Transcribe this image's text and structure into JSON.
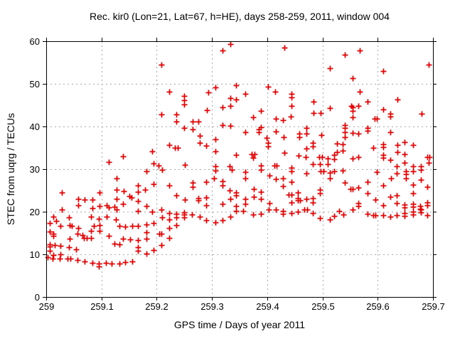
{
  "chart_data": {
    "type": "scatter",
    "title": "Rec. kir0 (Lon=21, Lat=67, h=HE), days 258-259, 2011, window 004",
    "xlabel": "GPS time / Days of year 2011",
    "ylabel": "STEC from uqrg / TECUs",
    "xlim": [
      259.0,
      259.7
    ],
    "ylim": [
      0,
      60
    ],
    "xticks": [
      259.0,
      259.1,
      259.2,
      259.3,
      259.4,
      259.5,
      259.6,
      259.7
    ],
    "xtick_labels": [
      "259",
      "259.1",
      "259.2",
      "259.3",
      "259.4",
      "259.5",
      "259.6",
      "259.7"
    ],
    "yticks": [
      0,
      10,
      20,
      30,
      40,
      50,
      60
    ],
    "ytick_labels": [
      "0",
      "10",
      "20",
      "30",
      "40",
      "50",
      "60"
    ],
    "grid": true,
    "legend": "none",
    "marker": "plus",
    "marker_color": "#e00000",
    "grid_color": "#a8a8a8",
    "border_color": "#000000",
    "points": [
      [
        259.113,
        31.7
      ],
      [
        259.139,
        33.0
      ],
      [
        259.127,
        27.8
      ],
      [
        259.028,
        24.5
      ],
      [
        259.127,
        25.2
      ],
      [
        259.14,
        24.8
      ],
      [
        259.166,
        26.2
      ],
      [
        259.058,
        23.0
      ],
      [
        259.07,
        22.8
      ],
      [
        259.083,
        22.8
      ],
      [
        259.097,
        24.5
      ],
      [
        259.15,
        23.7
      ],
      [
        259.155,
        23.3
      ],
      [
        259.127,
        23.0
      ],
      [
        259.139,
        21.8
      ],
      [
        259.166,
        22.5
      ],
      [
        259.058,
        21.5
      ],
      [
        259.028,
        20.5
      ],
      [
        259.083,
        20.8
      ],
      [
        259.097,
        21.3
      ],
      [
        259.11,
        21.5
      ],
      [
        259.113,
        21.0
      ],
      [
        259.123,
        21.2
      ],
      [
        259.127,
        20.5
      ],
      [
        259.013,
        18.8
      ],
      [
        259.041,
        18.7
      ],
      [
        259.018,
        17.8
      ],
      [
        259.081,
        18.8
      ],
      [
        259.095,
        18.3
      ],
      [
        259.11,
        18.8
      ],
      [
        259.126,
        18.2
      ],
      [
        259.006,
        17.3
      ],
      [
        259.026,
        16.7
      ],
      [
        259.042,
        16.8
      ],
      [
        259.046,
        16.6
      ],
      [
        259.058,
        16.2
      ],
      [
        259.086,
        16.7
      ],
      [
        259.097,
        16.8
      ],
      [
        259.132,
        16.7
      ],
      [
        259.143,
        16.5
      ],
      [
        259.156,
        16.7
      ],
      [
        259.166,
        16.7
      ],
      [
        259.006,
        15.3
      ],
      [
        259.013,
        14.8
      ],
      [
        259.013,
        14.3
      ],
      [
        259.057,
        14.8
      ],
      [
        259.066,
        14.5
      ],
      [
        259.081,
        15.5
      ],
      [
        259.068,
        13.8
      ],
      [
        259.073,
        13.8
      ],
      [
        259.081,
        13.8
      ],
      [
        259.097,
        15.5
      ],
      [
        259.113,
        14.3
      ],
      [
        259.043,
        13.7
      ],
      [
        259.139,
        13.7
      ],
      [
        259.152,
        13.5
      ],
      [
        259.166,
        13.3
      ],
      [
        259.124,
        12.5
      ],
      [
        259.132,
        12.3
      ],
      [
        259.006,
        12.3
      ],
      [
        259.006,
        11.9
      ],
      [
        259.016,
        12.2
      ],
      [
        259.026,
        12.0
      ],
      [
        259.041,
        11.7
      ],
      [
        259.006,
        10.8
      ],
      [
        259.054,
        11.2
      ],
      [
        259.013,
        9.8
      ],
      [
        259.026,
        10.0
      ],
      [
        259.002,
        9.3
      ],
      [
        259.012,
        9.0
      ],
      [
        259.025,
        9.0
      ],
      [
        259.039,
        9.0
      ],
      [
        259.044,
        9.0
      ],
      [
        259.057,
        8.7
      ],
      [
        259.07,
        8.3
      ],
      [
        259.083,
        8.0
      ],
      [
        259.095,
        7.8
      ],
      [
        259.108,
        8.0
      ],
      [
        259.095,
        7.2
      ],
      [
        259.119,
        7.8
      ],
      [
        259.132,
        7.8
      ],
      [
        259.143,
        8.2
      ],
      [
        259.156,
        8.3
      ],
      [
        259.333,
        59.3
      ],
      [
        259.319,
        57.8
      ],
      [
        259.208,
        54.5
      ],
      [
        259.306,
        49.2
      ],
      [
        259.222,
        48.2
      ],
      [
        259.293,
        48.0
      ],
      [
        259.25,
        47.2
      ],
      [
        259.25,
        46.2
      ],
      [
        259.333,
        46.7
      ],
      [
        259.343,
        46.3
      ],
      [
        259.25,
        45.2
      ],
      [
        259.319,
        44.5
      ],
      [
        259.333,
        44.8
      ],
      [
        259.291,
        43.8
      ],
      [
        259.208,
        42.8
      ],
      [
        259.236,
        42.8
      ],
      [
        259.236,
        41.2
      ],
      [
        259.265,
        41.2
      ],
      [
        259.276,
        41.2
      ],
      [
        259.319,
        40.3
      ],
      [
        259.333,
        40.2
      ],
      [
        259.25,
        39.7
      ],
      [
        259.265,
        39.3
      ],
      [
        259.278,
        37.8
      ],
      [
        259.278,
        36.2
      ],
      [
        259.306,
        37.0
      ],
      [
        259.289,
        35.5
      ],
      [
        259.222,
        35.7
      ],
      [
        259.233,
        35.0
      ],
      [
        259.238,
        35.0
      ],
      [
        259.306,
        34.2
      ],
      [
        259.192,
        34.2
      ],
      [
        259.194,
        31.3
      ],
      [
        259.203,
        30.8
      ],
      [
        259.251,
        31.0
      ],
      [
        259.306,
        30.7
      ],
      [
        259.332,
        30.7
      ],
      [
        259.343,
        49.7
      ],
      [
        259.343,
        33.3
      ],
      [
        259.182,
        29.5
      ],
      [
        259.21,
        29.8
      ],
      [
        259.306,
        29.7
      ],
      [
        259.336,
        29.8
      ],
      [
        259.304,
        27.8
      ],
      [
        259.319,
        27.2
      ],
      [
        259.319,
        26.2
      ],
      [
        259.194,
        26.5
      ],
      [
        259.222,
        26.2
      ],
      [
        259.179,
        25.2
      ],
      [
        259.166,
        24.7
      ],
      [
        259.265,
        26.8
      ],
      [
        259.265,
        25.8
      ],
      [
        259.289,
        27.0
      ],
      [
        259.332,
        25.0
      ],
      [
        259.343,
        24.5
      ],
      [
        259.236,
        23.8
      ],
      [
        259.251,
        22.8
      ],
      [
        259.276,
        23.2
      ],
      [
        259.276,
        22.7
      ],
      [
        259.289,
        23.3
      ],
      [
        259.333,
        23.0
      ],
      [
        259.319,
        21.8
      ],
      [
        259.289,
        21.5
      ],
      [
        259.182,
        21.3
      ],
      [
        259.192,
        20.0
      ],
      [
        259.208,
        20.5
      ],
      [
        259.166,
        20.2
      ],
      [
        259.222,
        19.7
      ],
      [
        259.235,
        19.5
      ],
      [
        259.249,
        19.8
      ],
      [
        259.249,
        19.3
      ],
      [
        259.264,
        19.3
      ],
      [
        259.278,
        18.8
      ],
      [
        259.21,
        18.7
      ],
      [
        259.222,
        18.2
      ],
      [
        259.236,
        18.7
      ],
      [
        259.249,
        18.7
      ],
      [
        259.289,
        18.0
      ],
      [
        259.306,
        17.5
      ],
      [
        259.319,
        18.0
      ],
      [
        259.333,
        18.8
      ],
      [
        259.182,
        17.0
      ],
      [
        259.194,
        17.3
      ],
      [
        259.222,
        16.2
      ],
      [
        259.236,
        16.8
      ],
      [
        259.182,
        15.2
      ],
      [
        259.204,
        14.8
      ],
      [
        259.209,
        14.8
      ],
      [
        259.222,
        13.8
      ],
      [
        259.182,
        13.7
      ],
      [
        259.208,
        12.2
      ],
      [
        259.194,
        11.0
      ],
      [
        259.182,
        10.2
      ],
      [
        259.166,
        11.7
      ],
      [
        259.166,
        10.8
      ],
      [
        259.431,
        58.5
      ],
      [
        259.514,
        53.7
      ],
      [
        259.401,
        49.3
      ],
      [
        259.414,
        48.2
      ],
      [
        259.36,
        47.7
      ],
      [
        259.444,
        47.7
      ],
      [
        259.444,
        46.8
      ],
      [
        259.484,
        45.8
      ],
      [
        259.444,
        44.8
      ],
      [
        259.513,
        44.3
      ],
      [
        259.388,
        43.7
      ],
      [
        259.484,
        43.2
      ],
      [
        259.497,
        43.2
      ],
      [
        259.375,
        42.2
      ],
      [
        259.415,
        41.8
      ],
      [
        259.428,
        41.5
      ],
      [
        259.443,
        42.3
      ],
      [
        259.389,
        39.8
      ],
      [
        259.36,
        38.7
      ],
      [
        259.385,
        39.3
      ],
      [
        259.385,
        38.7
      ],
      [
        259.399,
        37.3
      ],
      [
        259.415,
        38.8
      ],
      [
        259.402,
        36.2
      ],
      [
        259.402,
        35.3
      ],
      [
        259.43,
        37.5
      ],
      [
        259.458,
        38.3
      ],
      [
        259.458,
        37.5
      ],
      [
        259.471,
        38.3
      ],
      [
        259.471,
        39.7
      ],
      [
        259.498,
        38.0
      ],
      [
        259.483,
        36.2
      ],
      [
        259.483,
        35.3
      ],
      [
        259.471,
        34.8
      ],
      [
        259.372,
        33.5
      ],
      [
        259.377,
        33.5
      ],
      [
        259.374,
        32.7
      ],
      [
        259.389,
        30.8
      ],
      [
        259.431,
        33.8
      ],
      [
        259.457,
        33.2
      ],
      [
        259.47,
        32.8
      ],
      [
        259.483,
        31.2
      ],
      [
        259.494,
        32.8
      ],
      [
        259.499,
        32.8
      ],
      [
        259.51,
        32.5
      ],
      [
        259.496,
        31.2
      ],
      [
        259.51,
        31.2
      ],
      [
        259.413,
        30.8
      ],
      [
        259.417,
        30.8
      ],
      [
        259.444,
        30.3
      ],
      [
        259.36,
        29.3
      ],
      [
        259.388,
        29.8
      ],
      [
        259.36,
        27.8
      ],
      [
        259.404,
        28.5
      ],
      [
        259.415,
        27.7
      ],
      [
        259.428,
        27.8
      ],
      [
        259.444,
        29.5
      ],
      [
        259.471,
        29.0
      ],
      [
        259.497,
        29.5
      ],
      [
        259.502,
        29.5
      ],
      [
        259.513,
        29.2
      ],
      [
        259.513,
        27.8
      ],
      [
        259.428,
        26.0
      ],
      [
        259.444,
        27.0
      ],
      [
        259.343,
        23.8
      ],
      [
        259.376,
        25.3
      ],
      [
        259.389,
        24.7
      ],
      [
        259.376,
        23.5
      ],
      [
        259.389,
        23.0
      ],
      [
        259.36,
        23.0
      ],
      [
        259.36,
        21.8
      ],
      [
        259.343,
        21.3
      ],
      [
        259.404,
        22.0
      ],
      [
        259.439,
        24.0
      ],
      [
        259.444,
        24.0
      ],
      [
        259.456,
        24.5
      ],
      [
        259.456,
        23.2
      ],
      [
        259.444,
        22.2
      ],
      [
        259.456,
        22.7
      ],
      [
        259.46,
        22.7
      ],
      [
        259.471,
        23.0
      ],
      [
        259.483,
        23.2
      ],
      [
        259.483,
        22.2
      ],
      [
        259.496,
        25.2
      ],
      [
        259.496,
        24.3
      ],
      [
        259.403,
        20.5
      ],
      [
        259.415,
        20.5
      ],
      [
        259.428,
        20.2
      ],
      [
        259.428,
        19.5
      ],
      [
        259.444,
        19.7
      ],
      [
        259.456,
        20.0
      ],
      [
        259.467,
        20.5
      ],
      [
        259.472,
        20.5
      ],
      [
        259.483,
        19.7
      ],
      [
        259.343,
        20.2
      ],
      [
        259.356,
        20.2
      ],
      [
        259.374,
        19.3
      ],
      [
        259.389,
        19.5
      ],
      [
        259.496,
        18.5
      ],
      [
        259.513,
        18.2
      ],
      [
        259.567,
        57.8
      ],
      [
        259.54,
        56.8
      ],
      [
        259.61,
        53.0
      ],
      [
        259.692,
        54.5
      ],
      [
        259.554,
        51.3
      ],
      [
        259.567,
        48.2
      ],
      [
        259.581,
        45.8
      ],
      [
        259.636,
        46.3
      ],
      [
        259.552,
        44.8
      ],
      [
        259.554,
        44.5
      ],
      [
        259.565,
        44.8
      ],
      [
        259.554,
        43.7
      ],
      [
        259.554,
        42.2
      ],
      [
        259.61,
        44.0
      ],
      [
        259.623,
        43.0
      ],
      [
        259.623,
        42.3
      ],
      [
        259.679,
        43.0
      ],
      [
        259.594,
        41.8
      ],
      [
        259.598,
        41.8
      ],
      [
        259.54,
        40.3
      ],
      [
        259.54,
        39.7
      ],
      [
        259.581,
        39.7
      ],
      [
        259.581,
        39.0
      ],
      [
        259.554,
        38.5
      ],
      [
        259.565,
        38.3
      ],
      [
        259.623,
        38.7
      ],
      [
        259.54,
        38.7
      ],
      [
        259.54,
        37.5
      ],
      [
        259.526,
        36.0
      ],
      [
        259.537,
        35.8
      ],
      [
        259.526,
        34.0
      ],
      [
        259.537,
        34.3
      ],
      [
        259.592,
        35.0
      ],
      [
        259.61,
        35.8
      ],
      [
        259.61,
        35.2
      ],
      [
        259.648,
        36.3
      ],
      [
        259.664,
        35.7
      ],
      [
        259.636,
        35.7
      ],
      [
        259.636,
        34.0
      ],
      [
        259.61,
        33.3
      ],
      [
        259.61,
        32.7
      ],
      [
        259.648,
        33.5
      ],
      [
        259.521,
        33.3
      ],
      [
        259.521,
        32.3
      ],
      [
        259.554,
        32.5
      ],
      [
        259.565,
        32.8
      ],
      [
        259.623,
        32.2
      ],
      [
        259.648,
        31.5
      ],
      [
        259.664,
        30.7
      ],
      [
        259.678,
        30.7
      ],
      [
        259.69,
        32.8
      ],
      [
        259.694,
        32.8
      ],
      [
        259.692,
        31.5
      ],
      [
        259.634,
        30.7
      ],
      [
        259.521,
        29.5
      ],
      [
        259.537,
        29.7
      ],
      [
        259.598,
        29.3
      ],
      [
        259.634,
        29.0
      ],
      [
        259.651,
        29.5
      ],
      [
        259.651,
        28.8
      ],
      [
        259.664,
        29.5
      ],
      [
        259.678,
        29.8
      ],
      [
        259.54,
        26.8
      ],
      [
        259.624,
        27.8
      ],
      [
        259.651,
        27.8
      ],
      [
        259.678,
        27.5
      ],
      [
        259.551,
        25.3
      ],
      [
        259.555,
        25.3
      ],
      [
        259.565,
        25.7
      ],
      [
        259.581,
        27.0
      ],
      [
        259.581,
        24.3
      ],
      [
        259.61,
        26.2
      ],
      [
        259.664,
        26.3
      ],
      [
        259.664,
        24.3
      ],
      [
        259.69,
        25.8
      ],
      [
        259.596,
        22.8
      ],
      [
        259.623,
        23.5
      ],
      [
        259.634,
        23.8
      ],
      [
        259.61,
        21.5
      ],
      [
        259.565,
        22.0
      ],
      [
        259.565,
        21.3
      ],
      [
        259.634,
        22.0
      ],
      [
        259.648,
        21.7
      ],
      [
        259.648,
        21.0
      ],
      [
        259.664,
        21.8
      ],
      [
        259.664,
        21.2
      ],
      [
        259.677,
        21.3
      ],
      [
        259.677,
        20.7
      ],
      [
        259.69,
        22.2
      ],
      [
        259.69,
        21.5
      ],
      [
        259.53,
        20.2
      ],
      [
        259.554,
        20.5
      ],
      [
        259.521,
        19.0
      ],
      [
        259.538,
        19.3
      ],
      [
        259.581,
        19.5
      ],
      [
        259.592,
        19.2
      ],
      [
        259.596,
        19.2
      ],
      [
        259.61,
        19.2
      ],
      [
        259.623,
        18.8
      ],
      [
        259.634,
        19.2
      ],
      [
        259.648,
        19.7
      ],
      [
        259.648,
        19.0
      ],
      [
        259.664,
        20.0
      ],
      [
        259.664,
        19.3
      ],
      [
        259.69,
        19.2
      ],
      [
        259.678,
        20.5
      ],
      [
        259.678,
        19.8
      ]
    ]
  }
}
